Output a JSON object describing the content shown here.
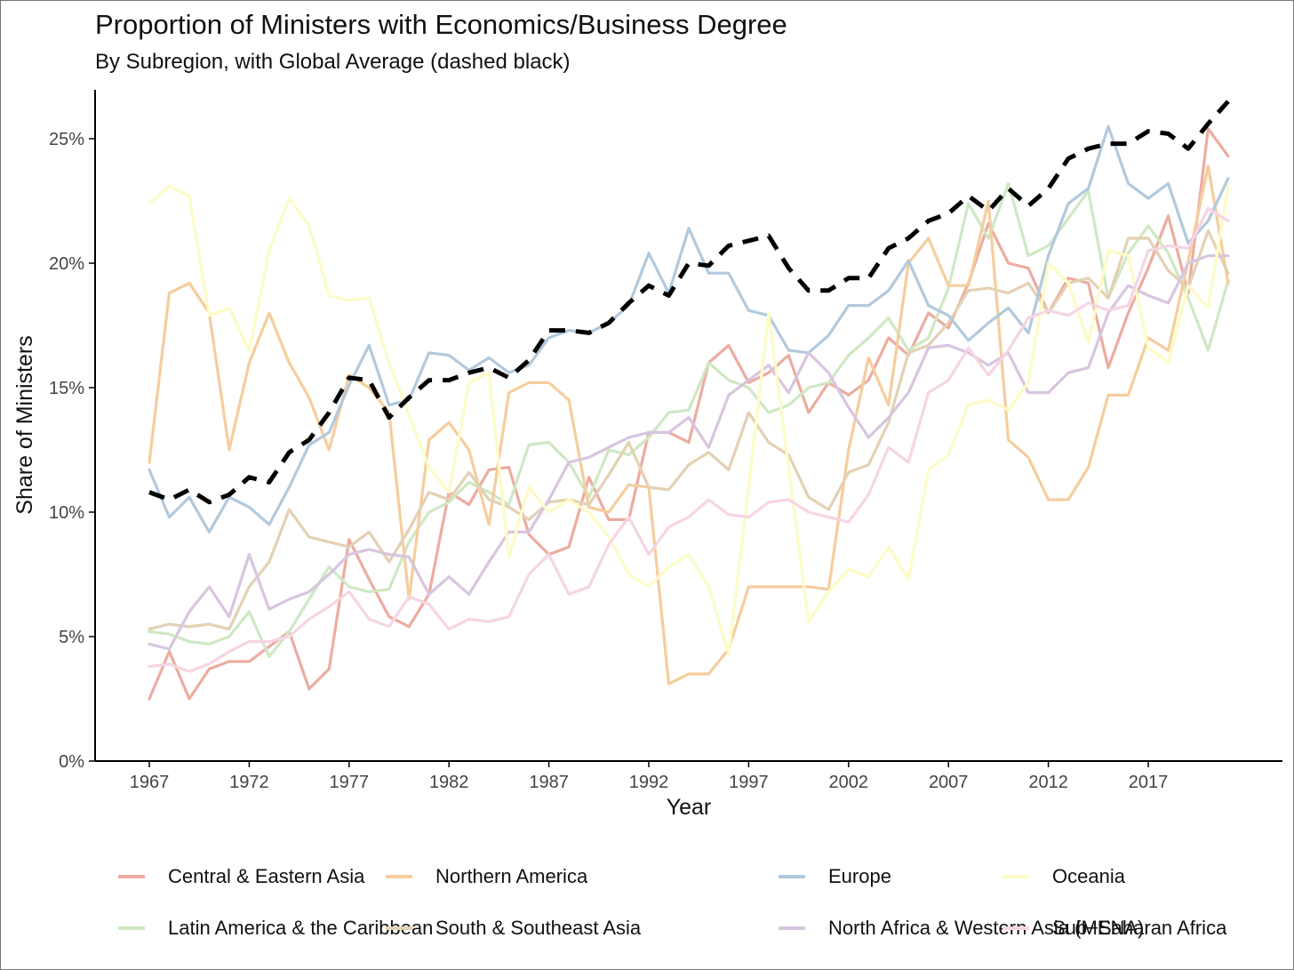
{
  "title": "Proportion of Ministers with Economics/Business Degree",
  "subtitle": "By Subregion, with Global Average (dashed black)",
  "chart_data": {
    "type": "line",
    "title": "Proportion of Ministers with Economics/Business Degree",
    "subtitle": "By Subregion, with Global Average (dashed black)",
    "xlabel": "Year",
    "ylabel": "Share of Ministers",
    "xlim": [
      1966,
      2022
    ],
    "ylim": [
      0,
      27
    ],
    "x_ticks": [
      1967,
      1972,
      1977,
      1982,
      1987,
      1992,
      1997,
      2002,
      2007,
      2012,
      2017
    ],
    "y_ticks": [
      0,
      5,
      10,
      15,
      20,
      25
    ],
    "y_tick_labels": [
      "0%",
      "5%",
      "10%",
      "15%",
      "20%",
      "25%"
    ],
    "x_tick_labels": [
      "1967",
      "1972",
      "1977",
      "1982",
      "1987",
      "1992",
      "1997",
      "2002",
      "2007",
      "2012",
      "2017"
    ],
    "x": [
      1967,
      1968,
      1969,
      1970,
      1971,
      1972,
      1973,
      1974,
      1975,
      1976,
      1977,
      1978,
      1979,
      1980,
      1981,
      1982,
      1983,
      1984,
      1985,
      1986,
      1987,
      1988,
      1989,
      1990,
      1991,
      1992,
      1993,
      1994,
      1995,
      1996,
      1997,
      1998,
      1999,
      2000,
      2001,
      2002,
      2003,
      2004,
      2005,
      2006,
      2007,
      2008,
      2009,
      2010,
      2011,
      2012,
      2013,
      2014,
      2015,
      2016,
      2017,
      2018,
      2019,
      2020,
      2021
    ],
    "legend_position": "bottom",
    "grid": false,
    "series": [
      {
        "name": "Central & Eastern Asia",
        "color": "#ecaca0",
        "values": [
          2.5,
          4.4,
          2.5,
          3.7,
          4.0,
          4.0,
          4.6,
          5.2,
          2.9,
          3.7,
          8.9,
          7.3,
          5.8,
          5.4,
          6.7,
          10.8,
          10.3,
          11.7,
          11.8,
          9.1,
          8.3,
          8.6,
          11.4,
          9.7,
          9.7,
          13.2,
          13.2,
          12.8,
          16.0,
          16.7,
          15.2,
          15.6,
          16.3,
          14.0,
          15.2,
          14.7,
          15.3,
          17.0,
          16.3,
          18.0,
          17.4,
          19.2,
          21.6,
          20.0,
          19.8,
          18.0,
          19.4,
          19.2,
          15.8,
          18.0,
          19.8,
          21.9,
          18.8,
          25.4,
          24.3
        ]
      },
      {
        "name": "Latin America & the Caribbean",
        "color": "#cfe8c3",
        "values": [
          5.2,
          5.1,
          4.8,
          4.7,
          5.0,
          6.0,
          4.2,
          5.2,
          6.5,
          7.8,
          7.0,
          6.8,
          6.9,
          8.8,
          10.0,
          10.4,
          11.2,
          10.8,
          10.3,
          12.7,
          12.8,
          12.0,
          10.6,
          12.5,
          12.3,
          13.0,
          14.0,
          14.1,
          16.0,
          15.3,
          15.0,
          14.0,
          14.3,
          15.0,
          15.2,
          16.3,
          17.0,
          17.8,
          16.5,
          17.0,
          19.0,
          22.4,
          21.0,
          23.2,
          20.3,
          20.7,
          21.8,
          22.9,
          18.6,
          20.4,
          21.5,
          20.4,
          18.6,
          16.5,
          19.3
        ]
      },
      {
        "name": "Northern America",
        "color": "#f6cd9e",
        "values": [
          12.0,
          18.8,
          19.2,
          18.0,
          12.5,
          16.0,
          18.0,
          16.0,
          14.6,
          12.5,
          15.5,
          15.0,
          14.0,
          6.5,
          12.9,
          13.6,
          12.5,
          9.5,
          14.8,
          15.2,
          15.2,
          14.5,
          10.2,
          10.0,
          11.1,
          11.0,
          3.1,
          3.5,
          3.5,
          4.5,
          7.0,
          7.0,
          7.0,
          7.0,
          6.9,
          12.5,
          16.2,
          14.3,
          20.0,
          21.0,
          19.1,
          19.1,
          22.5,
          12.9,
          12.2,
          10.5,
          10.5,
          11.8,
          14.7,
          14.7,
          17.0,
          16.5,
          20.1,
          23.9,
          19.2
        ]
      },
      {
        "name": "South & Southeast Asia",
        "color": "#e3d1b4",
        "values": [
          5.3,
          5.5,
          5.4,
          5.5,
          5.3,
          7.0,
          8.0,
          10.1,
          9.0,
          8.8,
          8.6,
          9.2,
          8.0,
          9.3,
          10.8,
          10.5,
          11.6,
          10.5,
          10.2,
          9.7,
          10.4,
          10.5,
          10.3,
          11.5,
          12.8,
          11.0,
          10.9,
          11.9,
          12.4,
          11.7,
          14.0,
          12.8,
          12.3,
          10.6,
          10.1,
          11.6,
          11.9,
          13.6,
          16.4,
          16.7,
          17.6,
          18.9,
          19.0,
          18.8,
          19.2,
          18.0,
          19.2,
          19.4,
          18.6,
          21.0,
          21.0,
          19.7,
          19.0,
          21.3,
          19.6
        ]
      },
      {
        "name": "Europe",
        "color": "#b2c9dd",
        "values": [
          11.7,
          9.8,
          10.6,
          9.2,
          10.6,
          10.2,
          9.5,
          11.0,
          12.7,
          13.2,
          15.1,
          16.7,
          14.3,
          14.5,
          16.4,
          16.3,
          15.7,
          16.2,
          15.6,
          15.9,
          17.0,
          17.3,
          17.2,
          17.6,
          18.3,
          20.4,
          18.8,
          21.4,
          19.6,
          19.6,
          18.1,
          17.9,
          16.5,
          16.4,
          17.1,
          18.3,
          18.3,
          18.9,
          20.1,
          18.3,
          17.9,
          16.9,
          17.6,
          18.2,
          17.2,
          20.3,
          22.4,
          23.0,
          25.5,
          23.2,
          22.6,
          23.2,
          20.8,
          21.7,
          23.4
        ]
      },
      {
        "name": "North Africa & Western Asia (MENA)",
        "color": "#d8c5df",
        "values": [
          4.7,
          4.5,
          6.0,
          7.0,
          5.8,
          8.3,
          6.1,
          6.5,
          6.8,
          7.5,
          8.3,
          8.5,
          8.3,
          8.2,
          6.7,
          7.4,
          6.7,
          8.0,
          9.2,
          9.2,
          10.5,
          12.0,
          12.2,
          12.6,
          13.0,
          13.2,
          13.2,
          13.8,
          12.6,
          14.7,
          15.3,
          15.9,
          14.8,
          16.4,
          15.6,
          14.2,
          13.0,
          13.8,
          14.8,
          16.6,
          16.7,
          16.4,
          15.9,
          16.4,
          14.8,
          14.8,
          15.6,
          15.8,
          18.0,
          19.1,
          18.7,
          18.4,
          20.0,
          20.3,
          20.3
        ]
      },
      {
        "name": "Oceania",
        "color": "#fdfbc6",
        "values": [
          22.4,
          23.1,
          22.7,
          17.9,
          18.2,
          16.5,
          20.5,
          22.6,
          21.5,
          18.7,
          18.5,
          18.6,
          16.0,
          13.9,
          11.8,
          10.8,
          15.2,
          15.6,
          8.2,
          11.0,
          10.0,
          10.5,
          10.0,
          9.0,
          7.5,
          7.0,
          7.8,
          8.3,
          7.0,
          4.3,
          11.0,
          18.0,
          11.8,
          5.6,
          6.8,
          7.7,
          7.4,
          8.6,
          7.3,
          11.7,
          12.3,
          14.3,
          14.5,
          14.1,
          15.2,
          20.0,
          19.2,
          16.8,
          20.5,
          20.3,
          16.6,
          16.0,
          19.1,
          18.2,
          23.1
        ]
      },
      {
        "name": "Sub-Saharan Africa",
        "color": "#f6d5e3",
        "values": [
          3.8,
          3.9,
          3.6,
          3.9,
          4.4,
          4.8,
          4.8,
          5.0,
          5.7,
          6.2,
          6.8,
          5.7,
          5.4,
          6.6,
          6.3,
          5.3,
          5.7,
          5.6,
          5.8,
          7.5,
          8.3,
          6.7,
          7.0,
          8.7,
          9.8,
          8.3,
          9.4,
          9.8,
          10.5,
          9.9,
          9.8,
          10.4,
          10.5,
          10.0,
          9.8,
          9.6,
          10.7,
          12.6,
          12.0,
          14.8,
          15.3,
          16.6,
          15.5,
          16.5,
          17.8,
          18.1,
          17.9,
          18.4,
          18.1,
          18.3,
          20.5,
          20.7,
          20.6,
          22.2,
          21.7
        ]
      }
    ],
    "global_average": {
      "name": "Global Average",
      "color": "#000000",
      "style": "dashed",
      "values": [
        10.8,
        10.5,
        10.9,
        10.4,
        10.7,
        11.4,
        11.2,
        12.4,
        12.9,
        14.0,
        15.4,
        15.3,
        13.8,
        14.6,
        15.3,
        15.3,
        15.6,
        15.8,
        15.4,
        16.1,
        17.3,
        17.3,
        17.2,
        17.6,
        18.4,
        19.1,
        18.7,
        20.0,
        19.9,
        20.7,
        20.9,
        21.1,
        19.8,
        18.9,
        18.9,
        19.4,
        19.4,
        20.6,
        21.0,
        21.7,
        22.0,
        22.7,
        22.1,
        23.0,
        22.3,
        23.0,
        24.2,
        24.6,
        24.8,
        24.8,
        25.3,
        25.2,
        24.6,
        25.6,
        26.5
      ]
    }
  }
}
